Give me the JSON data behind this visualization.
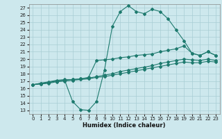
{
  "xlabel": "Humidex (Indice chaleur)",
  "background_color": "#cde8ed",
  "grid_color": "#a8cdd4",
  "line_color": "#1e7a6e",
  "xlim": [
    -0.5,
    23.5
  ],
  "ylim": [
    12.5,
    27.5
  ],
  "xticks": [
    0,
    1,
    2,
    3,
    4,
    5,
    6,
    7,
    8,
    9,
    10,
    11,
    12,
    13,
    14,
    15,
    16,
    17,
    18,
    19,
    20,
    21,
    22,
    23
  ],
  "yticks": [
    13,
    14,
    15,
    16,
    17,
    18,
    19,
    20,
    21,
    22,
    23,
    24,
    25,
    26,
    27
  ],
  "curve1_x": [
    0,
    1,
    2,
    3,
    4,
    5,
    6,
    7,
    8,
    9,
    10,
    11,
    12,
    13,
    14,
    15,
    16,
    17,
    18,
    19,
    20,
    21,
    22,
    23
  ],
  "curve1_y": [
    16.5,
    16.7,
    16.8,
    17.0,
    17.1,
    14.2,
    13.1,
    13.0,
    14.2,
    18.5,
    24.5,
    26.5,
    27.3,
    26.5,
    26.2,
    26.8,
    26.5,
    25.5,
    24.0,
    22.5,
    20.8,
    20.5,
    21.0,
    20.5
  ],
  "curve2_x": [
    0,
    1,
    2,
    3,
    4,
    5,
    6,
    7,
    8,
    9,
    10,
    11,
    12,
    13,
    14,
    15,
    16,
    17,
    18,
    19,
    20,
    21,
    22,
    23
  ],
  "curve2_y": [
    16.5,
    16.7,
    16.9,
    17.1,
    17.2,
    17.2,
    17.3,
    17.5,
    19.8,
    19.9,
    20.0,
    20.2,
    20.3,
    20.5,
    20.6,
    20.7,
    21.0,
    21.2,
    21.4,
    21.8,
    20.8,
    20.5,
    21.0,
    20.5
  ],
  "curve3_x": [
    0,
    1,
    2,
    3,
    4,
    5,
    6,
    7,
    8,
    9,
    10,
    11,
    12,
    13,
    14,
    15,
    16,
    17,
    18,
    19,
    20,
    21,
    22,
    23
  ],
  "curve3_y": [
    16.5,
    16.6,
    16.8,
    17.0,
    17.1,
    17.2,
    17.3,
    17.4,
    17.6,
    17.8,
    18.0,
    18.3,
    18.5,
    18.7,
    18.9,
    19.1,
    19.4,
    19.6,
    19.8,
    20.0,
    19.9,
    19.8,
    20.0,
    19.8
  ],
  "curve4_x": [
    0,
    1,
    2,
    3,
    4,
    5,
    6,
    7,
    8,
    9,
    10,
    11,
    12,
    13,
    14,
    15,
    16,
    17,
    18,
    19,
    20,
    21,
    22,
    23
  ],
  "curve4_y": [
    16.5,
    16.6,
    16.7,
    16.9,
    17.0,
    17.1,
    17.2,
    17.3,
    17.5,
    17.6,
    17.8,
    18.0,
    18.2,
    18.4,
    18.6,
    18.8,
    19.0,
    19.2,
    19.4,
    19.6,
    19.5,
    19.5,
    19.7,
    19.6
  ]
}
